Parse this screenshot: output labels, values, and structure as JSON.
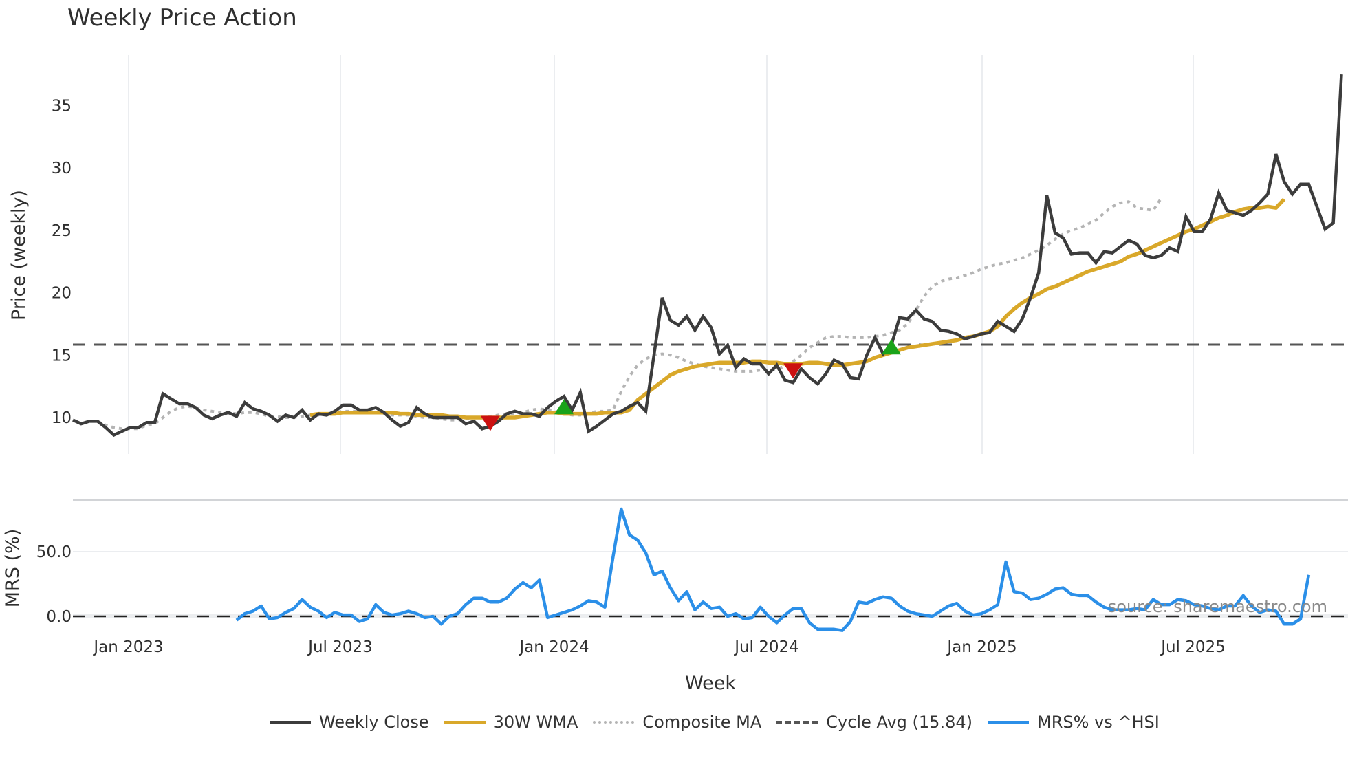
{
  "title": "Weekly Price Action",
  "price_axis": {
    "label": "Price (weekly)",
    "ticks": [
      "10",
      "15",
      "20",
      "25",
      "30",
      "35"
    ]
  },
  "mrs_axis": {
    "label": "MRS (%)",
    "ticks": [
      "0.0",
      "50.0"
    ]
  },
  "x_axis": {
    "label": "Week",
    "ticks": [
      "Jan 2023",
      "Jul 2023",
      "Jan 2024",
      "Jul 2024",
      "Jan 2025",
      "Jul 2025"
    ]
  },
  "source": "source: sharemaestro.com",
  "legend": [
    {
      "label": "Weekly Close",
      "color": "#3c3c3c"
    },
    {
      "label": "30W WMA",
      "color": "#d9a82a"
    },
    {
      "label": "Composite MA",
      "color": "#b4b4b4"
    },
    {
      "label": "Cycle Avg (15.84)",
      "color": "#555555"
    },
    {
      "label": "MRS% vs ^HSI",
      "color": "#2b8fe8"
    }
  ],
  "colors": {
    "close": "#3c3c3c",
    "wma": "#d9a82a",
    "composite": "#b4b4b4",
    "cycle": "#555555",
    "mrs": "#2b8fe8",
    "buy": "#1aa31a",
    "sell": "#cc1111",
    "grid": "#ebedf0"
  },
  "chart_data": [
    {
      "type": "line",
      "title": "Weekly Price Action",
      "xlabel": "Week",
      "ylabel": "Price (weekly)",
      "ylim": [
        7,
        38
      ],
      "x_ticks": [
        "Jan 2023",
        "Jul 2023",
        "Jan 2024",
        "Jul 2024",
        "Jan 2025",
        "Jul 2025"
      ],
      "cycle_avg": 15.84,
      "series": [
        {
          "name": "Weekly Close",
          "values": [
            9.8,
            9.5,
            9.7,
            9.7,
            9.2,
            8.6,
            8.9,
            9.2,
            9.2,
            9.6,
            9.6,
            11.9,
            11.5,
            11.1,
            11.1,
            10.8,
            10.2,
            9.9,
            10.2,
            10.4,
            10.1,
            11.2,
            10.7,
            10.5,
            10.2,
            9.7,
            10.2,
            10.0,
            10.6,
            9.8,
            10.3,
            10.2,
            10.5,
            11.0,
            11.0,
            10.6,
            10.6,
            10.8,
            10.4,
            9.8,
            9.3,
            9.6,
            10.8,
            10.3,
            10.0,
            10.0,
            10.0,
            10.0,
            9.5,
            9.7,
            9.1,
            9.3,
            9.7,
            10.3,
            10.5,
            10.3,
            10.3,
            10.1,
            10.8,
            11.3,
            11.7,
            10.6,
            12.0,
            8.9,
            9.3,
            9.8,
            10.3,
            10.5,
            10.9,
            11.2,
            10.5,
            15.0,
            19.6,
            17.8,
            17.4,
            18.1,
            17.0,
            18.1,
            17.2,
            15.1,
            15.8,
            14.0,
            14.7,
            14.3,
            14.3,
            13.5,
            14.2,
            13.0,
            12.8,
            13.9,
            13.2,
            12.7,
            13.5,
            14.6,
            14.3,
            13.2,
            13.1,
            15.0,
            16.4,
            15.1,
            15.8,
            18.0,
            17.9,
            18.6,
            17.9,
            17.7,
            17.0,
            16.9,
            16.7,
            16.3,
            16.5,
            16.7,
            16.8,
            17.7,
            17.3,
            16.9,
            17.9,
            19.6,
            21.6,
            27.8,
            24.8,
            24.4,
            23.1,
            23.2,
            23.2,
            22.4,
            23.3,
            23.2,
            23.7,
            24.2,
            23.9,
            23.0,
            22.8,
            23.0,
            23.6,
            23.3,
            26.1,
            24.9,
            24.9,
            25.9,
            28.0,
            26.6,
            26.4,
            26.2,
            26.6,
            27.2,
            27.9,
            31.1,
            28.9,
            27.9,
            28.7,
            28.7,
            26.9,
            25.1,
            25.6,
            37.5
          ]
        },
        {
          "name": "30W WMA",
          "start_index": 29,
          "values": [
            10.2,
            10.3,
            10.3,
            10.3,
            10.4,
            10.4,
            10.4,
            10.4,
            10.4,
            10.4,
            10.4,
            10.3,
            10.3,
            10.2,
            10.2,
            10.2,
            10.2,
            10.1,
            10.1,
            10.0,
            10.0,
            10.0,
            10.0,
            10.0,
            10.0,
            10.0,
            10.1,
            10.2,
            10.3,
            10.4,
            10.4,
            10.3,
            10.3,
            10.3,
            10.3,
            10.3,
            10.4,
            10.4,
            10.4,
            10.6,
            11.4,
            11.9,
            12.4,
            12.9,
            13.4,
            13.7,
            13.9,
            14.1,
            14.2,
            14.3,
            14.4,
            14.4,
            14.4,
            14.4,
            14.5,
            14.5,
            14.4,
            14.4,
            14.3,
            14.3,
            14.3,
            14.4,
            14.4,
            14.3,
            14.2,
            14.2,
            14.3,
            14.4,
            14.5,
            14.8,
            15.0,
            15.2,
            15.4,
            15.6,
            15.7,
            15.8,
            15.9,
            16.0,
            16.1,
            16.2,
            16.4,
            16.5,
            16.7,
            16.9,
            17.3,
            18.1,
            18.7,
            19.2,
            19.6,
            19.9,
            20.3,
            20.5,
            20.8,
            21.1,
            21.4,
            21.7,
            21.9,
            22.1,
            22.3,
            22.5,
            22.9,
            23.1,
            23.4,
            23.7,
            24.0,
            24.3,
            24.6,
            24.9,
            25.1,
            25.4,
            25.7,
            26.0,
            26.2,
            26.5,
            26.7,
            26.8,
            26.8,
            26.9,
            26.8,
            27.5
          ]
        },
        {
          "name": "Composite MA",
          "start_index": 3,
          "values": [
            9.7,
            9.4,
            9.2,
            9.1,
            9.1,
            9.1,
            9.4,
            9.5,
            10.0,
            10.5,
            10.8,
            10.9,
            10.8,
            10.6,
            10.5,
            10.4,
            10.4,
            10.3,
            10.4,
            10.4,
            10.3,
            10.1,
            10.1,
            10.0,
            10.0,
            10.1,
            10.2,
            10.2,
            10.3,
            10.4,
            10.5,
            10.5,
            10.5,
            10.5,
            10.4,
            10.3,
            10.2,
            10.2,
            10.2,
            10.1,
            10.0,
            10.0,
            9.9,
            9.8,
            9.8,
            9.9,
            10.0,
            10.0,
            10.1,
            10.2,
            10.3,
            10.3,
            10.4,
            10.6,
            10.7,
            10.6,
            10.5,
            10.3,
            10.2,
            10.2,
            10.3,
            10.5,
            10.5,
            10.6,
            12.1,
            13.3,
            14.2,
            14.7,
            15.0,
            15.1,
            15.0,
            14.8,
            14.5,
            14.3,
            14.1,
            14.0,
            13.9,
            13.8,
            13.7,
            13.7,
            13.7,
            13.8,
            13.8,
            13.9,
            14.1,
            14.5,
            15.0,
            15.6,
            16.0,
            16.4,
            16.5,
            16.5,
            16.4,
            16.4,
            16.4,
            16.5,
            16.6,
            16.8,
            17.0,
            17.5,
            18.6,
            19.7,
            20.5,
            20.9,
            21.1,
            21.2,
            21.4,
            21.6,
            21.9,
            22.1,
            22.3,
            22.4,
            22.6,
            22.8,
            23.1,
            23.4,
            23.8,
            24.3,
            24.7,
            25.0,
            25.2,
            25.5,
            25.8,
            26.4,
            26.9,
            27.2,
            27.3,
            26.8,
            26.7,
            26.6,
            27.6
          ]
        }
      ],
      "signals": [
        {
          "type": "sell",
          "index": 51,
          "price": 9.7
        },
        {
          "type": "buy",
          "index": 60,
          "price": 10.7
        },
        {
          "type": "sell",
          "index": 88,
          "price": 13.9
        },
        {
          "type": "buy",
          "index": 100,
          "price": 15.5
        }
      ]
    },
    {
      "type": "line",
      "title": "MRS% vs ^HSI",
      "ylabel": "MRS (%)",
      "ylim": [
        -12,
        88
      ],
      "series": [
        {
          "name": "MRS% vs ^HSI",
          "start_index": 20,
          "values": [
            -3,
            2,
            4,
            8,
            -2,
            -1,
            3,
            6,
            13,
            7,
            4,
            -1,
            3,
            1,
            1,
            -4,
            -2,
            9,
            3,
            1,
            2,
            4,
            2,
            -1,
            0,
            -6,
            0,
            2,
            9,
            14,
            14,
            11,
            11,
            14,
            21,
            26,
            22,
            28,
            -1,
            1,
            3,
            5,
            8,
            12,
            11,
            7,
            46,
            83,
            63,
            59,
            49,
            32,
            35,
            22,
            12,
            19,
            5,
            11,
            6,
            7,
            0,
            2,
            -2,
            -1,
            7,
            0,
            -5,
            1,
            6,
            6,
            -5,
            -10,
            -10,
            -10,
            -11,
            -4,
            11,
            10,
            13,
            15,
            14,
            8,
            4,
            2,
            1,
            0,
            4,
            8,
            10,
            4,
            1,
            2,
            5,
            9,
            42,
            19,
            18,
            13,
            14,
            17,
            21,
            22,
            17,
            16,
            16,
            11,
            7,
            5,
            5,
            5,
            6,
            5,
            13,
            9,
            9,
            13,
            12,
            9,
            8,
            6,
            5,
            8,
            8,
            16,
            8,
            3,
            5,
            4,
            -6,
            -6,
            -2,
            32
          ]
        }
      ]
    }
  ]
}
